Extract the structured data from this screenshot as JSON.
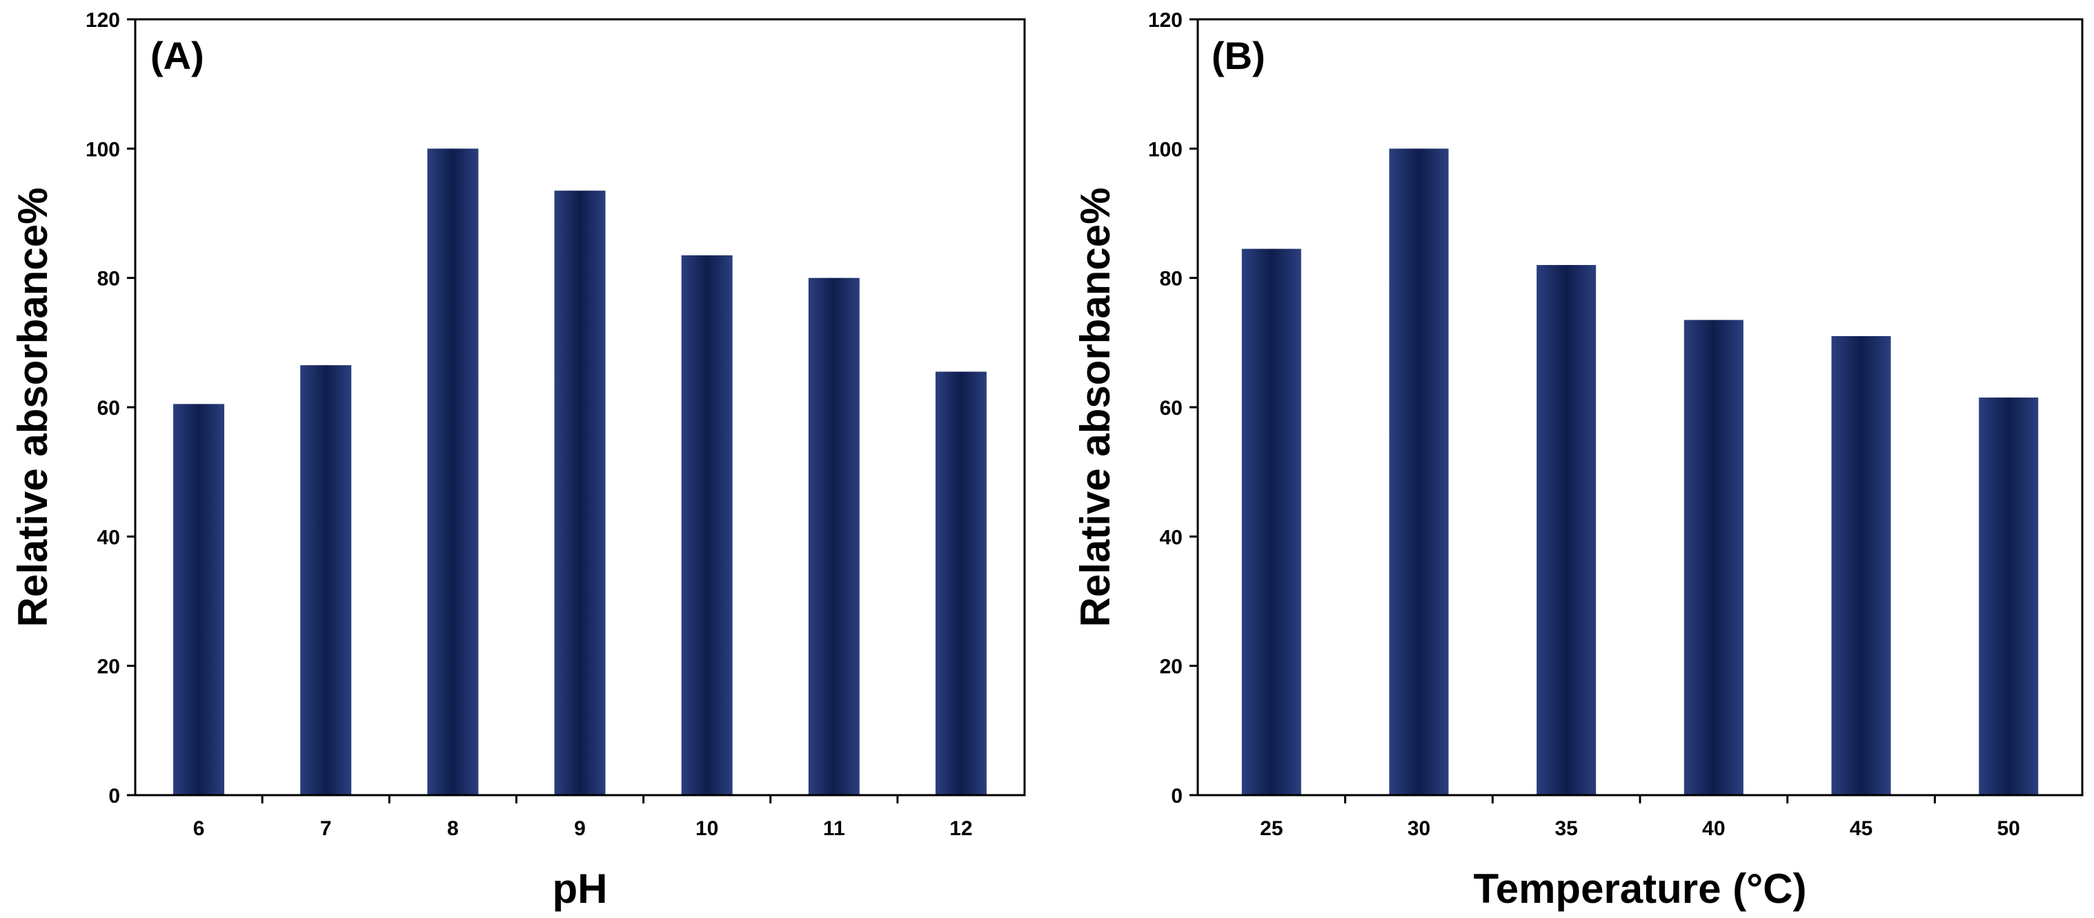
{
  "chart_data": [
    {
      "type": "bar",
      "panel_label": "(A)",
      "xlabel": "pH",
      "ylabel": "Relative absorbance%",
      "categories": [
        "6",
        "7",
        "8",
        "9",
        "10",
        "11",
        "12"
      ],
      "values": [
        60.5,
        66.5,
        100,
        93.5,
        83.5,
        80,
        65.5
      ],
      "ylim": [
        0,
        120
      ],
      "yticks": [
        "0",
        "20",
        "40",
        "60",
        "80",
        "100",
        "120"
      ],
      "grid": false,
      "legend": "none",
      "bar_color": "#1a2a5e"
    },
    {
      "type": "bar",
      "panel_label": "(B)",
      "xlabel": "Temperature (°C)",
      "ylabel": "Relative absorbance%",
      "categories": [
        "25",
        "30",
        "35",
        "40",
        "45",
        "50"
      ],
      "values": [
        84.5,
        100,
        82,
        73.5,
        71,
        61.5
      ],
      "ylim": [
        0,
        120
      ],
      "yticks": [
        "0",
        "20",
        "40",
        "60",
        "80",
        "100",
        "120"
      ],
      "grid": false,
      "legend": "none",
      "bar_color": "#1a2a5e"
    }
  ]
}
